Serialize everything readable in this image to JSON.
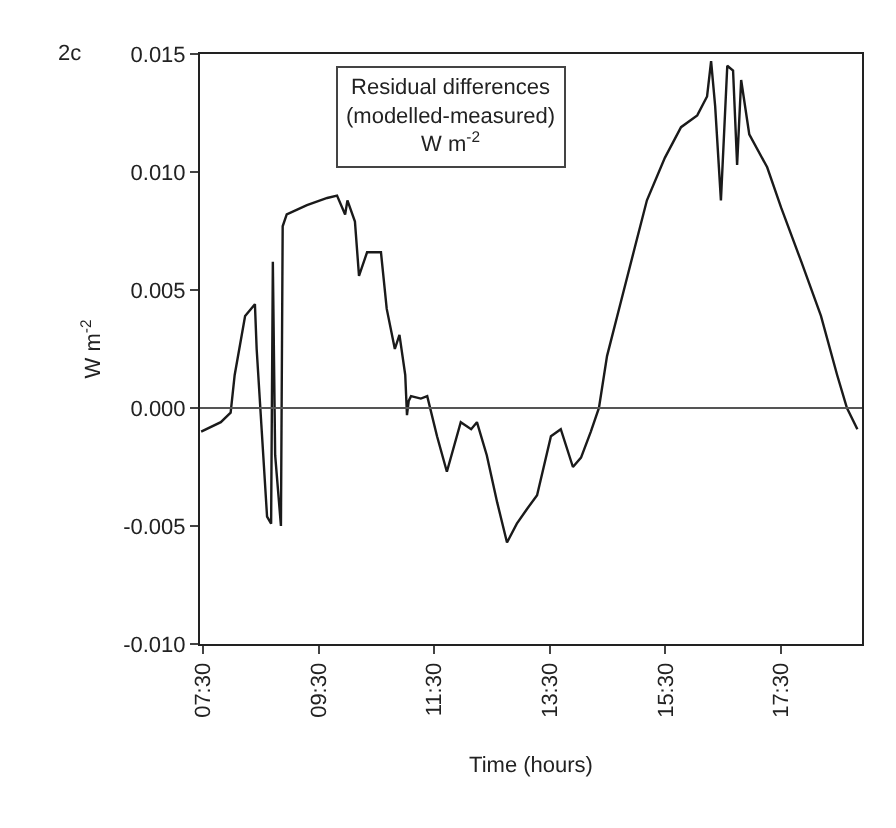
{
  "chart_data": {
    "type": "line",
    "xlabel": "Time (hours)",
    "ylabel": "W m$^{-2}$",
    "annotations": [
      "2c",
      "Residual differences\n(modelled-measured)\nW m$^{-2}$"
    ],
    "x": [
      7.47,
      7.81,
      7.98,
      8.05,
      8.23,
      8.4,
      8.43,
      8.61,
      8.68,
      8.71,
      8.75,
      8.85,
      8.88,
      8.95,
      9.3,
      9.65,
      9.82,
      9.96,
      10.0,
      10.13,
      10.2,
      10.34,
      10.58,
      10.68,
      10.82,
      10.9,
      11.0,
      11.03,
      11.06,
      11.1,
      11.27,
      11.38,
      11.55,
      11.72,
      11.96,
      12.14,
      12.24,
      12.41,
      12.59,
      12.76,
      12.93,
      13.1,
      13.28,
      13.52,
      13.69,
      13.9,
      14.04,
      14.21,
      14.35,
      14.49,
      14.73,
      14.97,
      15.18,
      15.49,
      15.77,
      16.05,
      16.22,
      16.29,
      16.36,
      16.46,
      16.57,
      16.67,
      16.74,
      16.81,
      16.95,
      17.26,
      17.5,
      17.85,
      18.19,
      18.47,
      18.64,
      18.82
    ],
    "series": [
      {
        "color": "#1a1a1a",
        "values": [
          -0.001,
          -0.0006,
          -0.0002,
          0.0014,
          0.0039,
          0.0044,
          0.0025,
          -0.0046,
          -0.0049,
          0.0062,
          -0.002,
          -0.005,
          0.0077,
          0.0082,
          0.0086,
          0.0089,
          0.009,
          0.0082,
          0.0088,
          0.0079,
          0.0056,
          0.0066,
          0.0066,
          0.0042,
          0.0025,
          0.0031,
          0.0014,
          -0.0003,
          0.0003,
          0.0005,
          0.0004,
          0.0005,
          -0.0012,
          -0.0027,
          -0.0006,
          -0.0009,
          -0.0006,
          -0.002,
          -0.004,
          -0.0057,
          -0.0049,
          -0.0043,
          -0.0037,
          -0.0012,
          -0.0009,
          -0.0025,
          -0.0021,
          -0.001,
          0.0,
          0.0022,
          0.0045,
          0.0068,
          0.0088,
          0.0106,
          0.0119,
          0.0124,
          0.0132,
          0.0147,
          0.0128,
          0.0088,
          0.0145,
          0.0143,
          0.0103,
          0.0139,
          0.0116,
          0.0102,
          0.0085,
          0.0062,
          0.0039,
          0.0014,
          0.0,
          -0.0009
        ]
      }
    ],
    "xlim": [
      7.45,
      18.9
    ],
    "xticks": [
      {
        "value": 7.5,
        "label": "07:30"
      },
      {
        "value": 9.5,
        "label": "09:30"
      },
      {
        "value": 11.5,
        "label": "11:30"
      },
      {
        "value": 13.5,
        "label": "13:30"
      },
      {
        "value": 15.5,
        "label": "15:30"
      },
      {
        "value": 17.5,
        "label": "17:30"
      }
    ],
    "ylim": [
      -0.01,
      0.015
    ],
    "yticks": [
      {
        "value": -0.01,
        "label": "-0.010"
      },
      -0.005,
      {
        "value": 0,
        "label": "0.000"
      },
      0.005,
      {
        "value": 0.01,
        "label": "0.010"
      },
      0.015
    ],
    "ref_lines": [
      {
        "axis": "y",
        "value": 0,
        "color": "#555555"
      }
    ],
    "marker": "none",
    "line_style": "solid"
  }
}
